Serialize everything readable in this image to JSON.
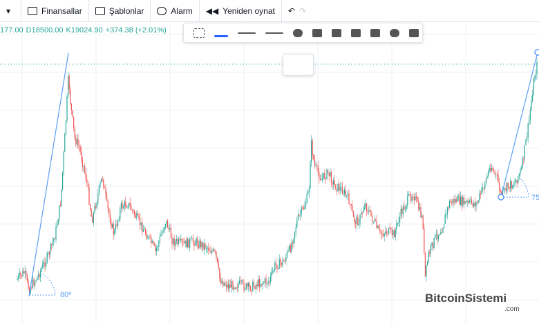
{
  "toolbar": {
    "items": [
      "Finansallar",
      "Şablonlar",
      "Alarm",
      "Yeniden oynat"
    ]
  },
  "legend": [
    "177.00",
    "D18500.00",
    "K19024.90",
    "+374.38 (+2.01%)"
  ],
  "annotations": [
    "80º",
    "75"
  ],
  "watermark": {
    "name": "BitcoinSistemi",
    "suffix": ".com"
  }
}
